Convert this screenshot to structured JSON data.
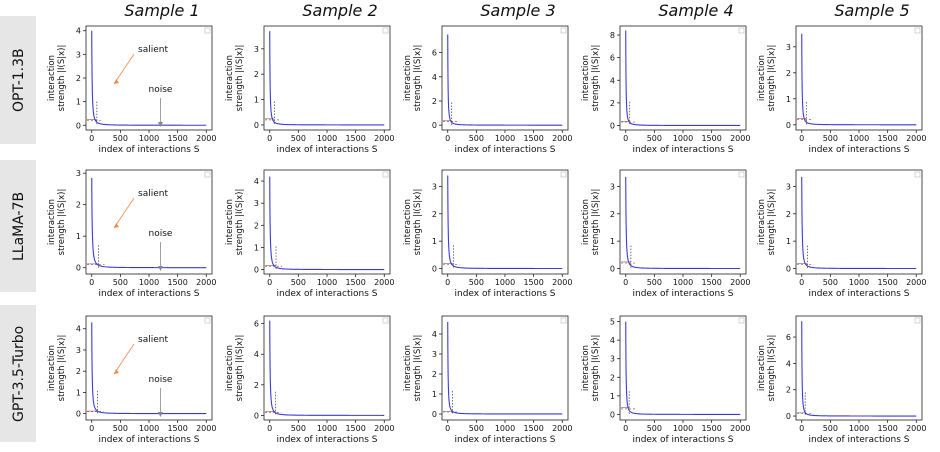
{
  "column_titles": [
    "Sample 1",
    "Sample 2",
    "Sample 3",
    "Sample 4",
    "Sample 5"
  ],
  "row_labels": [
    "OPT-1.3B",
    "LLaMA-7B",
    "GPT-3.5-Turbo"
  ],
  "colors": {
    "curve": "#3b3bd9",
    "threshold_line": "#e0403a",
    "arrow_salient": "#f08a4b",
    "arrow_noise": "#888888",
    "band": "#e6e6e6"
  },
  "annotations": {
    "salient": "salient",
    "noise": "noise"
  },
  "chart_data": [
    {
      "type": "line",
      "row": "OPT-1.3B",
      "column": "Sample 1",
      "ylabel": "interaction strength |I(S|x)|",
      "xlabel": "index of interactions S",
      "xlim": [
        -100,
        2100
      ],
      "ylim": [
        -0.2,
        4.2
      ],
      "xticks": [
        0,
        500,
        1000,
        1500,
        2000
      ],
      "yticks": [
        0,
        1,
        2,
        3,
        4
      ],
      "series": [
        {
          "peak": 4.0,
          "decay": 12
        }
      ],
      "vline": 90,
      "hline": 0.2,
      "annotated": true
    },
    {
      "type": "line",
      "row": "OPT-1.3B",
      "column": "Sample 2",
      "ylabel": "interaction strength |I(S|x)|",
      "xlabel": "index of interactions S",
      "xlim": [
        -100,
        2100
      ],
      "ylim": [
        -0.2,
        3.9
      ],
      "xticks": [
        0,
        500,
        1000,
        1500,
        2000
      ],
      "yticks": [
        0,
        1,
        2,
        3
      ],
      "series": [
        {
          "peak": 3.7,
          "decay": 10
        }
      ],
      "vline": 80,
      "hline": 0.2
    },
    {
      "type": "line",
      "row": "OPT-1.3B",
      "column": "Sample 3",
      "ylabel": "interaction strength |I(S|x)|",
      "xlabel": "index of interactions S",
      "xlim": [
        -100,
        2100
      ],
      "ylim": [
        -0.4,
        8.2
      ],
      "xticks": [
        0,
        500,
        1000,
        1500,
        2000
      ],
      "yticks": [
        0,
        2,
        4,
        6
      ],
      "series": [
        {
          "peak": 7.5,
          "decay": 9
        }
      ],
      "vline": 70,
      "hline": 0.3
    },
    {
      "type": "line",
      "row": "OPT-1.3B",
      "column": "Sample 4",
      "ylabel": "interaction strength |I(S|x)|",
      "xlabel": "index of interactions S",
      "xlim": [
        -100,
        2100
      ],
      "ylim": [
        -0.4,
        8.8
      ],
      "xticks": [
        0,
        500,
        1000,
        1500,
        2000
      ],
      "yticks": [
        0,
        2,
        4,
        6,
        8
      ],
      "series": [
        {
          "peak": 8.4,
          "decay": 9
        }
      ],
      "vline": 70,
      "hline": 0.3
    },
    {
      "type": "line",
      "row": "OPT-1.3B",
      "column": "Sample 5",
      "ylabel": "interaction strength |I(S|x)|",
      "xlabel": "index of interactions S",
      "xlim": [
        -100,
        2100
      ],
      "ylim": [
        -0.2,
        3.8
      ],
      "xticks": [
        0,
        500,
        1000,
        1500,
        2000
      ],
      "yticks": [
        0,
        1,
        2,
        3
      ],
      "series": [
        {
          "peak": 3.5,
          "decay": 10
        }
      ],
      "vline": 80,
      "hline": 0.2
    },
    {
      "type": "line",
      "row": "LLaMA-7B",
      "column": "Sample 1",
      "ylabel": "interaction strength |I(S|x)|",
      "xlabel": "index of interactions S",
      "xlim": [
        -100,
        2100
      ],
      "ylim": [
        -0.2,
        3.1
      ],
      "xticks": [
        0,
        500,
        1000,
        1500,
        2000
      ],
      "yticks": [
        0,
        1,
        2,
        3
      ],
      "series": [
        {
          "peak": 2.85,
          "decay": 14
        }
      ],
      "vline": 120,
      "hline": 0.1,
      "annotated": true
    },
    {
      "type": "line",
      "row": "LLaMA-7B",
      "column": "Sample 2",
      "ylabel": "interaction strength |I(S|x)|",
      "xlabel": "index of interactions S",
      "xlim": [
        -100,
        2100
      ],
      "ylim": [
        -0.2,
        4.5
      ],
      "xticks": [
        0,
        500,
        1000,
        1500,
        2000
      ],
      "yticks": [
        0,
        1,
        2,
        3,
        4
      ],
      "series": [
        {
          "peak": 4.2,
          "decay": 12
        }
      ],
      "vline": 110,
      "hline": 0.15
    },
    {
      "type": "line",
      "row": "LLaMA-7B",
      "column": "Sample 3",
      "ylabel": "interaction strength |I(S|x)|",
      "xlabel": "index of interactions S",
      "xlim": [
        -100,
        2100
      ],
      "ylim": [
        -0.2,
        3.6
      ],
      "xticks": [
        0,
        500,
        1000,
        1500,
        2000
      ],
      "yticks": [
        0,
        1,
        2,
        3
      ],
      "series": [
        {
          "peak": 3.4,
          "decay": 12
        }
      ],
      "vline": 100,
      "hline": 0.15
    },
    {
      "type": "line",
      "row": "LLaMA-7B",
      "column": "Sample 4",
      "ylabel": "interaction strength |I(S|x)|",
      "xlabel": "index of interactions S",
      "xlim": [
        -100,
        2100
      ],
      "ylim": [
        -0.2,
        3.6
      ],
      "xticks": [
        0,
        500,
        1000,
        1500,
        2000
      ],
      "yticks": [
        0,
        1,
        2,
        3
      ],
      "series": [
        {
          "peak": 3.35,
          "decay": 12
        }
      ],
      "vline": 90,
      "hline": 0.2
    },
    {
      "type": "line",
      "row": "LLaMA-7B",
      "column": "Sample 5",
      "ylabel": "interaction strength |I(S|x)|",
      "xlabel": "index of interactions S",
      "xlim": [
        -100,
        2100
      ],
      "ylim": [
        -0.2,
        3.6
      ],
      "xticks": [
        0,
        500,
        1000,
        1500,
        2000
      ],
      "yticks": [
        0,
        1,
        2,
        3
      ],
      "series": [
        {
          "peak": 3.35,
          "decay": 12
        }
      ],
      "vline": 100,
      "hline": 0.15
    },
    {
      "type": "line",
      "row": "GPT-3.5-Turbo",
      "column": "Sample 1",
      "ylabel": "interaction strength |I(S|x)|",
      "xlabel": "index of interactions S",
      "xlim": [
        -100,
        2100
      ],
      "ylim": [
        -0.3,
        4.6
      ],
      "xticks": [
        0,
        500,
        1000,
        1500,
        2000
      ],
      "yticks": [
        0,
        1,
        2,
        3,
        4
      ],
      "series": [
        {
          "peak": 4.3,
          "decay": 12
        }
      ],
      "vline": 100,
      "hline": 0.1,
      "annotated": true
    },
    {
      "type": "line",
      "row": "GPT-3.5-Turbo",
      "column": "Sample 2",
      "ylabel": "interaction strength |I(S|x)|",
      "xlabel": "index of interactions S",
      "xlim": [
        -100,
        2100
      ],
      "ylim": [
        -0.3,
        6.5
      ],
      "xticks": [
        0,
        500,
        1000,
        1500,
        2000
      ],
      "yticks": [
        0,
        2,
        4,
        6
      ],
      "series": [
        {
          "peak": 6.2,
          "decay": 12
        }
      ],
      "vline": 100,
      "hline": 0.2
    },
    {
      "type": "line",
      "row": "GPT-3.5-Turbo",
      "column": "Sample 3",
      "ylabel": "interaction strength |I(S|x)|",
      "xlabel": "index of interactions S",
      "xlim": [
        -100,
        2100
      ],
      "ylim": [
        -0.3,
        4.9
      ],
      "xticks": [
        0,
        500,
        1000,
        1500,
        2000
      ],
      "yticks": [
        0,
        1,
        2,
        3,
        4
      ],
      "series": [
        {
          "peak": 4.6,
          "decay": 10
        }
      ],
      "vline": 80,
      "hline": 0.1
    },
    {
      "type": "line",
      "row": "GPT-3.5-Turbo",
      "column": "Sample 4",
      "ylabel": "interaction strength |I(S|x)|",
      "xlabel": "index of interactions S",
      "xlim": [
        -100,
        2100
      ],
      "ylim": [
        -0.3,
        5.3
      ],
      "xticks": [
        0,
        500,
        1000,
        1500,
        2000
      ],
      "yticks": [
        0,
        1,
        2,
        3,
        4,
        5
      ],
      "series": [
        {
          "peak": 5.0,
          "decay": 10
        }
      ],
      "vline": 60,
      "hline": 0.3
    },
    {
      "type": "line",
      "row": "GPT-3.5-Turbo",
      "column": "Sample 5",
      "ylabel": "interaction strength |I(S|x)|",
      "xlabel": "index of interactions S",
      "xlim": [
        -100,
        2100
      ],
      "ylim": [
        -0.3,
        7.6
      ],
      "xticks": [
        0,
        500,
        1000,
        1500,
        2000
      ],
      "yticks": [
        0,
        2,
        4,
        6
      ],
      "series": [
        {
          "peak": 7.2,
          "decay": 9
        }
      ],
      "vline": 60,
      "hline": 0.2
    }
  ]
}
